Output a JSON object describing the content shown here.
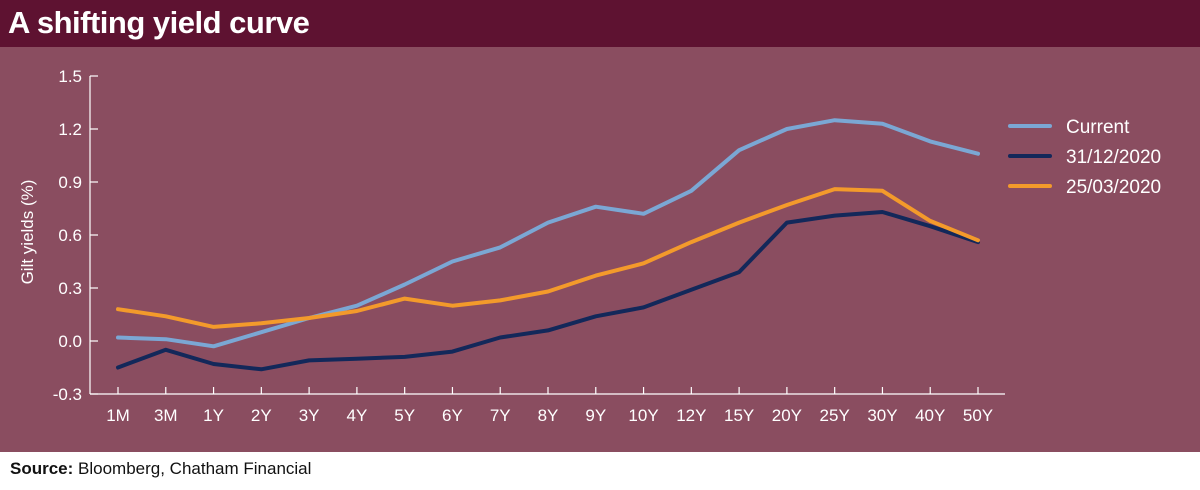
{
  "title": "A shifting yield curve",
  "source": {
    "label": "Source:",
    "text": " Bloomberg, Chatham Financial"
  },
  "colors": {
    "header_bg": "#5e1231",
    "plot_bg": "#8a4d60",
    "axis": "#ffffff",
    "current": "#7ba7d4",
    "dec2020": "#13285a",
    "mar2020": "#f39a2b"
  },
  "chart_data": {
    "type": "line",
    "title": "A shifting yield curve",
    "xlabel": "",
    "ylabel": "Gilt yields (%)",
    "ylim": [
      -0.3,
      1.5
    ],
    "yticks": [
      "1.5",
      "1.2",
      "0.9",
      "0.6",
      "0.3",
      "0.0",
      "-0.3"
    ],
    "categories": [
      "1M",
      "3M",
      "1Y",
      "2Y",
      "3Y",
      "4Y",
      "5Y",
      "6Y",
      "7Y",
      "8Y",
      "9Y",
      "10Y",
      "12Y",
      "15Y",
      "20Y",
      "25Y",
      "30Y",
      "40Y",
      "50Y"
    ],
    "grid": false,
    "legend_position": "right",
    "series": [
      {
        "name": "Current",
        "color": "#7ba7d4",
        "values": [
          0.02,
          0.01,
          -0.03,
          0.05,
          0.13,
          0.2,
          0.32,
          0.45,
          0.53,
          0.67,
          0.76,
          0.72,
          0.85,
          1.08,
          1.2,
          1.25,
          1.23,
          1.13,
          1.06
        ]
      },
      {
        "name": "31/12/2020",
        "color": "#13285a",
        "values": [
          -0.15,
          -0.05,
          -0.13,
          -0.16,
          -0.11,
          -0.1,
          -0.09,
          -0.06,
          0.02,
          0.06,
          0.14,
          0.19,
          0.29,
          0.39,
          0.67,
          0.71,
          0.73,
          0.65,
          0.56
        ]
      },
      {
        "name": "25/03/2020",
        "color": "#f39a2b",
        "values": [
          0.18,
          0.14,
          0.08,
          0.1,
          0.13,
          0.17,
          0.24,
          0.2,
          0.23,
          0.28,
          0.37,
          0.44,
          0.56,
          0.67,
          0.77,
          0.86,
          0.85,
          0.68,
          0.57
        ]
      }
    ]
  }
}
